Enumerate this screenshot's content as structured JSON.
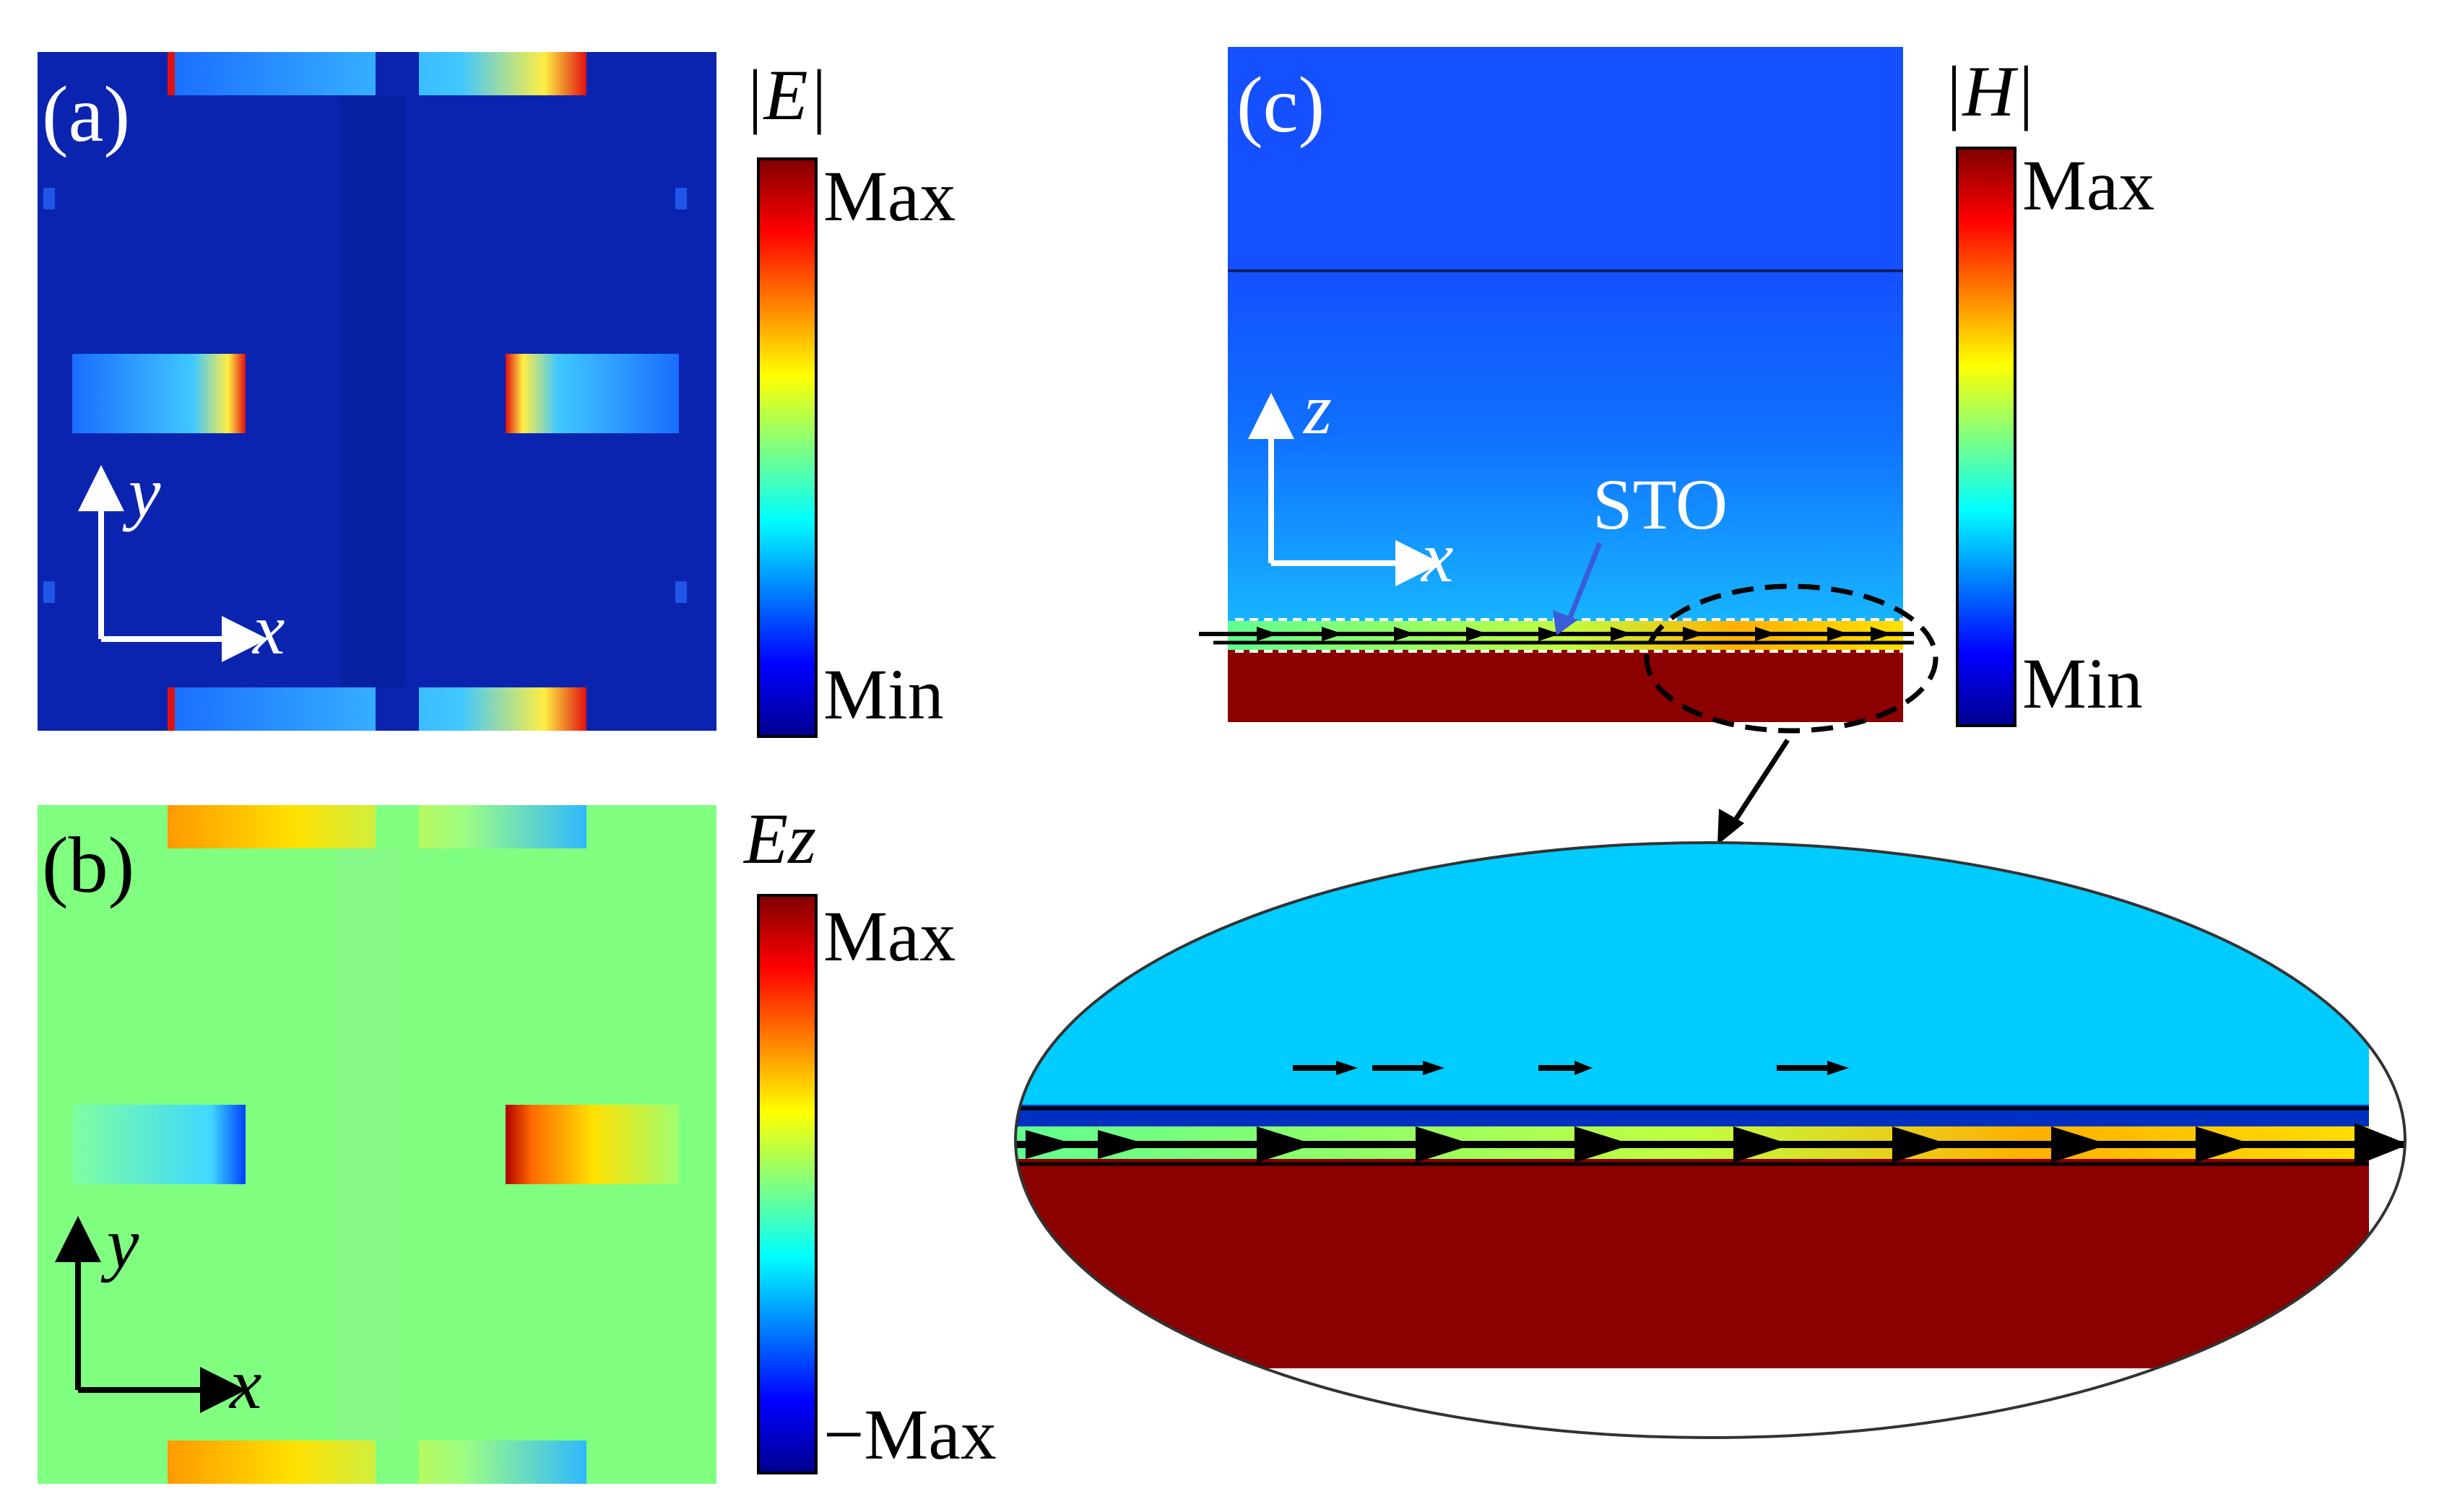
{
  "panel_a": {
    "label": "(a)",
    "colorbar_title": "|E|",
    "colorbar_max": "Max",
    "colorbar_min": "Min",
    "axis_vertical": "y",
    "axis_horizontal": "x"
  },
  "panel_b": {
    "label": "(b)",
    "colorbar_title": "Ez",
    "colorbar_max": "Max",
    "colorbar_min": "−Max",
    "axis_vertical": "y",
    "axis_horizontal": "x"
  },
  "panel_c": {
    "label": "(c)",
    "colorbar_title": "|H|",
    "colorbar_max": "Max",
    "colorbar_min": "Min",
    "axis_vertical": "z",
    "axis_horizontal": "x",
    "layer_label": "STO"
  },
  "colors": {
    "jet_dark_blue": "#00008f",
    "field_background_a": "#0a24b0",
    "field_background_b": "#80ff80",
    "substrate": "#8b0000",
    "upper_region_c": "#1a5cff",
    "zoom_top": "#00ccff"
  }
}
